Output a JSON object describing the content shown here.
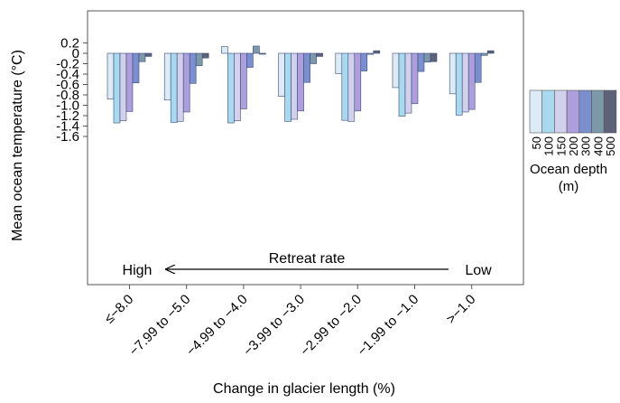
{
  "chart_data": {
    "type": "bar",
    "xlabel": "Change in glacier length (%)",
    "ylabel": "Mean ocean temperature (°C)",
    "ylim": [
      -1.8,
      0.25
    ],
    "yticks": [
      0.2,
      0,
      -0.2,
      -0.4,
      -0.6,
      -0.8,
      -1.0,
      -1.2,
      -1.4,
      -1.6
    ],
    "ytick_labels": [
      "0.2",
      "0",
      "-0.2",
      "-0.4",
      "-0.6",
      "-0.8",
      "-1.0",
      "-1.2",
      "-1.4",
      "-1.6"
    ],
    "categories": [
      "≤−8.0",
      "−7.99 to −5.0",
      "−4.99 to −4.0",
      "−3.99 to −3.0",
      "−2.99 to −2.0",
      "−1.99 to −1.0",
      ">−1.0"
    ],
    "series": [
      {
        "name": "50",
        "color": "#dcebf6",
        "values": [
          -0.88,
          -0.9,
          0.13,
          -0.83,
          -0.39,
          -0.66,
          -0.78
        ]
      },
      {
        "name": "100",
        "color": "#a9d9ee",
        "values": [
          -1.34,
          -1.33,
          -1.34,
          -1.31,
          -1.29,
          -1.21,
          -1.19
        ]
      },
      {
        "name": "150",
        "color": "#d3d0ec",
        "values": [
          -1.3,
          -1.31,
          -1.3,
          -1.27,
          -1.31,
          -1.15,
          -1.13
        ]
      },
      {
        "name": "200",
        "color": "#ad9fdb",
        "values": [
          -1.12,
          -1.13,
          -1.07,
          -1.11,
          -1.11,
          -0.97,
          -1.08
        ]
      },
      {
        "name": "300",
        "color": "#7b8fce",
        "values": [
          -0.57,
          -0.58,
          -0.27,
          -0.56,
          -0.34,
          -0.35,
          -0.56
        ]
      },
      {
        "name": "400",
        "color": "#7c98a9",
        "values": [
          -0.16,
          -0.24,
          0.14,
          -0.2,
          -0.02,
          -0.17,
          -0.04
        ]
      },
      {
        "name": "500",
        "color": "#5e6279",
        "values": [
          -0.06,
          -0.09,
          0.0,
          -0.06,
          0.05,
          -0.16,
          0.05
        ]
      }
    ],
    "legend": {
      "title": "Ocean depth (m)",
      "title_line1": "Ocean depth",
      "title_line2": "(m)",
      "placement": "right"
    },
    "annotation": {
      "center": "Retreat rate",
      "left": "High",
      "right": "Low"
    },
    "grid": false
  }
}
